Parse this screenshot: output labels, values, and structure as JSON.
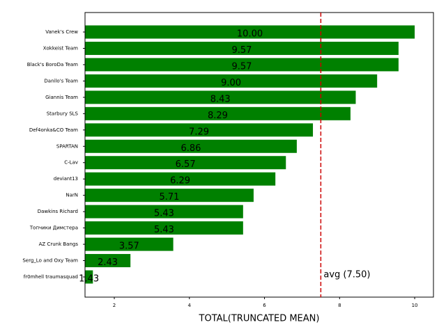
{
  "chart_data": {
    "type": "barh",
    "xlabel": "TOTAL(TRUNCATED MEAN)",
    "categories": [
      "Vanek's Crew",
      "Xokkeist Team",
      "Black's BoroDa Team",
      "Danilo's Team",
      "Giannis Team",
      "Starbury SLS",
      "Def4onka&CO Team",
      "SPARTAN",
      "C-Lav",
      "deviant13",
      "NarN",
      "Dawkins Richard",
      "Топчики Димстера",
      "AZ Crunk Bangs",
      "Serg_Lo and Oxy Team",
      "fr0mhell traumasquad"
    ],
    "values": [
      10.0,
      9.57,
      9.57,
      9.0,
      8.43,
      8.29,
      7.29,
      6.86,
      6.57,
      6.29,
      5.71,
      5.43,
      5.43,
      3.57,
      2.43,
      1.43
    ],
    "value_labels": [
      "10.00",
      "9.57",
      "9.57",
      "9.00",
      "8.43",
      "8.29",
      "7.29",
      "6.86",
      "6.57",
      "6.29",
      "5.71",
      "5.43",
      "5.43",
      "3.57",
      "2.43",
      "1.43"
    ],
    "color": "#008000",
    "xlim": [
      1.22,
      10.5
    ],
    "xticks": [
      2,
      4,
      6,
      8,
      10
    ],
    "avg_line": {
      "value": 7.5,
      "label": "avg (7.50)",
      "color": "#cc0000"
    }
  }
}
